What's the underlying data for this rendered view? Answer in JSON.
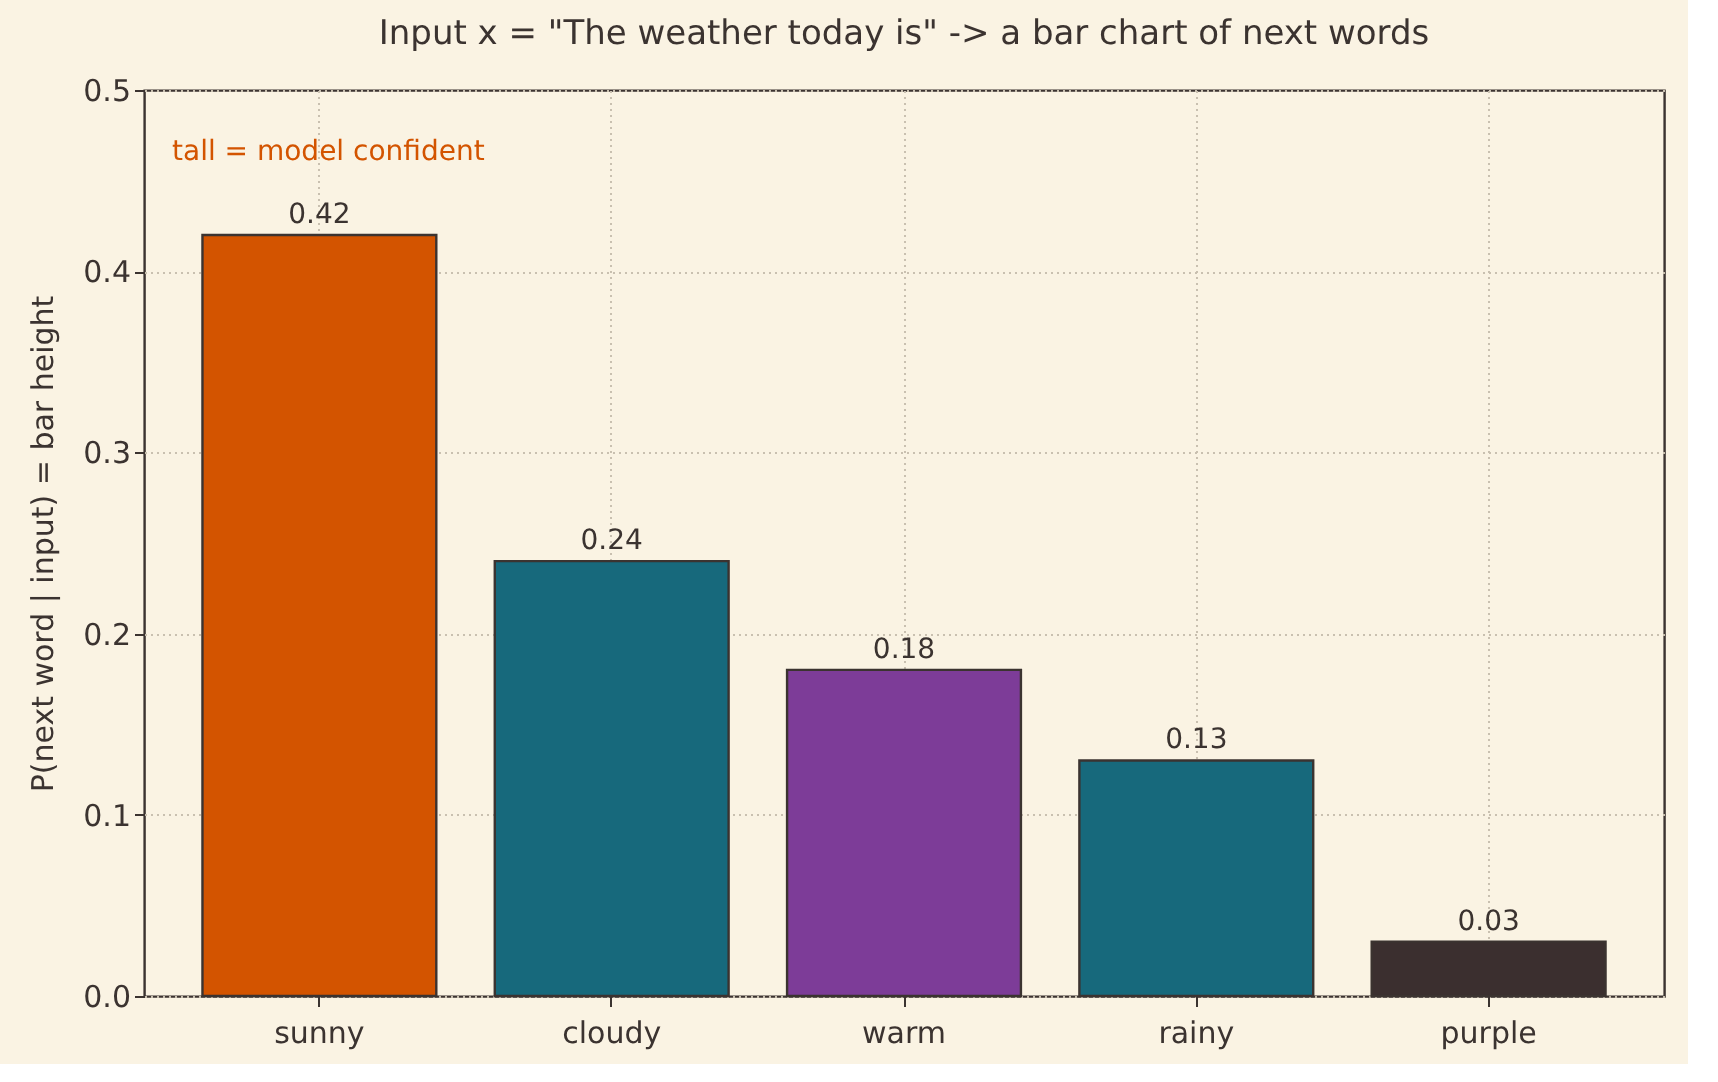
{
  "chart_data": {
    "type": "bar",
    "title": "Input x = \"The weather today is\"  ->  a bar chart of next words",
    "ylabel": "P(next word | input)  = bar height",
    "annotations": [
      "tall = model confident"
    ],
    "categories": [
      "sunny",
      "cloudy",
      "warm",
      "rainy",
      "purple"
    ],
    "values": [
      0.42,
      0.24,
      0.18,
      0.13,
      0.03
    ],
    "colors": [
      "#d35400",
      "#17697c",
      "#7d3c98",
      "#17697c",
      "#3b2f2f"
    ],
    "ylim": [
      0,
      0.5
    ],
    "yticks": [
      {
        "value": 0,
        "label": "0.0"
      },
      {
        "value": 0.1,
        "label": "0.1"
      },
      {
        "value": 0.2,
        "label": "0.2"
      },
      {
        "value": 0.3,
        "label": "0.3"
      },
      {
        "value": 0.4,
        "label": "0.4"
      },
      {
        "value": 0.5,
        "label": "0.5"
      }
    ],
    "data_labels": true,
    "grid": true
  }
}
